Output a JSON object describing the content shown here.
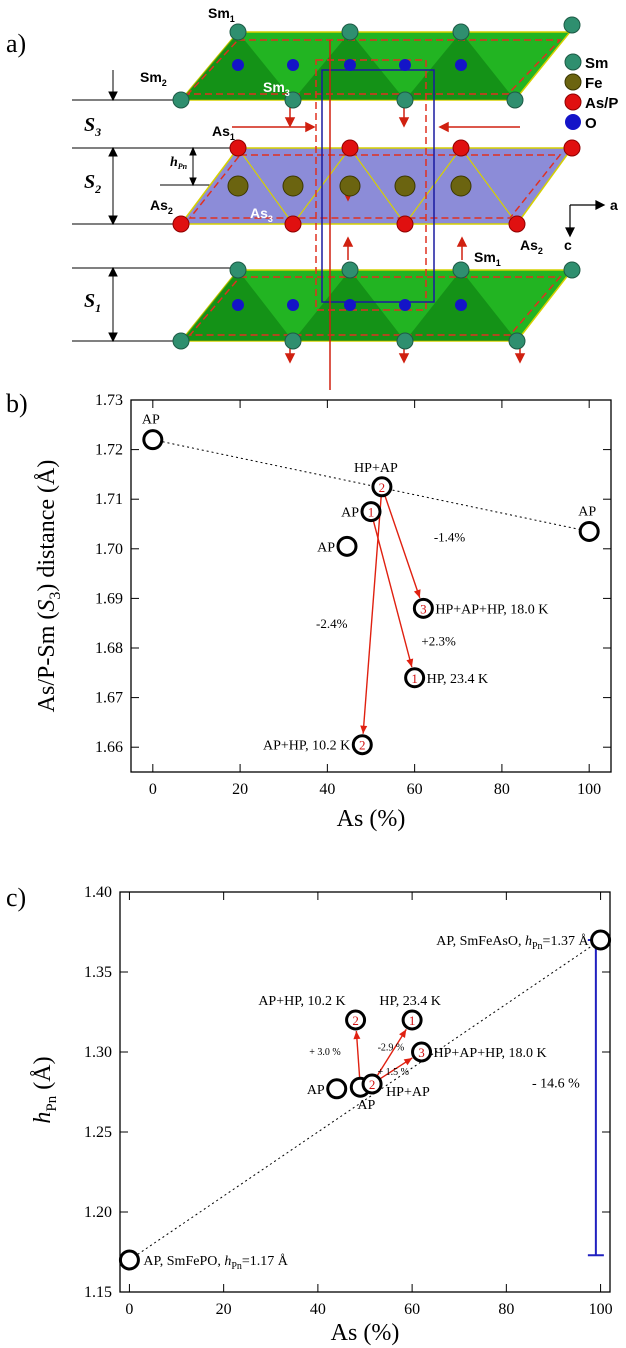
{
  "panels": {
    "a": {
      "label": "a)"
    },
    "b": {
      "label": "b)"
    },
    "c": {
      "label": "c)"
    }
  },
  "structure": {
    "legend": [
      {
        "label": "Sm",
        "color": "#2f8f6f"
      },
      {
        "label": "Fe",
        "color": "#6b6410"
      },
      {
        "label": "As/P",
        "color": "#e01010"
      },
      {
        "label": "O",
        "color": "#1010c0"
      }
    ],
    "atom_labels": {
      "sm1_top": "Sm",
      "sm1_top_sub": "1",
      "sm2": "Sm",
      "sm2_sub": "2",
      "sm3": "Sm",
      "sm3_sub": "3",
      "as1": "As",
      "as1_sub": "1",
      "as2_left": "As",
      "as2_left_sub": "2",
      "as3": "As",
      "as3_sub": "3",
      "as2_right": "As",
      "as2_right_sub": "2",
      "sm1_bottom": "Sm",
      "sm1_bottom_sub": "1"
    },
    "spacing_labels": {
      "s3": "S",
      "s3_sub": "3",
      "s2": "S",
      "s2_sub": "2",
      "s1": "S",
      "s1_sub": "1",
      "h": "h",
      "h_sub": "Pn"
    },
    "axes": {
      "a": "a",
      "c": "c"
    }
  },
  "chart_data": [
    {
      "type": "scatter",
      "panel": "b",
      "xlabel": "As (%)",
      "ylabel_parts": {
        "pre": "As/P-Sm (",
        "sym": "S",
        "sub": "3",
        "post": ") distance (Å)"
      },
      "xlim": [
        -5,
        105
      ],
      "ylim": [
        1.655,
        1.73
      ],
      "xticks": [
        0,
        20,
        40,
        60,
        80,
        100
      ],
      "yticks": [
        1.66,
        1.67,
        1.68,
        1.69,
        1.7,
        1.71,
        1.72,
        1.73
      ],
      "points": [
        {
          "x": 0,
          "y": 1.722,
          "num": "",
          "label": "AP"
        },
        {
          "x": 100,
          "y": 1.7035,
          "num": "",
          "label": "AP"
        },
        {
          "x": 44.5,
          "y": 1.7005,
          "num": "",
          "label": "AP"
        },
        {
          "x": 50,
          "y": 1.7075,
          "num": "1",
          "label": "AP"
        },
        {
          "x": 52.5,
          "y": 1.7125,
          "num": "2",
          "label": "HP+AP"
        },
        {
          "x": 48,
          "y": 1.6605,
          "num": "2",
          "label": "AP+HP, 10.2 K"
        },
        {
          "x": 60,
          "y": 1.674,
          "num": "1",
          "label": "HP, 23.4 K"
        },
        {
          "x": 62,
          "y": 1.688,
          "num": "3",
          "label": "HP+AP+HP, 18.0 K"
        }
      ],
      "trend": {
        "from": [
          0,
          1.722
        ],
        "to": [
          100,
          1.7035
        ]
      },
      "arrows": [
        {
          "from": [
            52.5,
            1.7125
          ],
          "to": [
            48,
            1.6605
          ]
        },
        {
          "from": [
            50,
            1.7075
          ],
          "to": [
            60,
            1.674
          ]
        },
        {
          "from": [
            52.5,
            1.7125
          ],
          "to": [
            62,
            1.688
          ]
        }
      ],
      "changes": [
        {
          "text": "-1.4%",
          "x": 68,
          "y": 1.7015
        },
        {
          "text": "+2.3%",
          "x": 65.5,
          "y": 1.6805
        },
        {
          "text": "-2.4%",
          "x": 41,
          "y": 1.684
        }
      ]
    },
    {
      "type": "scatter",
      "panel": "c",
      "xlabel": "As (%)",
      "ylabel_parts": {
        "sym": "h",
        "sub": "Pn",
        "post": " (Å)"
      },
      "xlim": [
        -2,
        102
      ],
      "ylim": [
        1.15,
        1.4
      ],
      "xticks": [
        0,
        20,
        40,
        60,
        80,
        100
      ],
      "yticks": [
        1.15,
        1.2,
        1.25,
        1.3,
        1.35,
        1.4
      ],
      "points": [
        {
          "x": 0,
          "y": 1.17,
          "num": "",
          "label": "AP, SmFePO, ",
          "hsym": "h",
          "hsub": "Pn",
          "hval": "=1.17 Å"
        },
        {
          "x": 100,
          "y": 1.37,
          "num": "",
          "label": "AP, SmFeAsO, ",
          "hsym": "h",
          "hsub": "Pn",
          "hval": "=1.37 Å"
        },
        {
          "x": 44,
          "y": 1.277,
          "num": "",
          "label": "AP"
        },
        {
          "x": 49,
          "y": 1.278,
          "num": "",
          "label": "AP"
        },
        {
          "x": 51.5,
          "y": 1.28,
          "num": "2",
          "label": "HP+AP"
        },
        {
          "x": 48,
          "y": 1.32,
          "num": "2",
          "label": "AP+HP, 10.2 K"
        },
        {
          "x": 60,
          "y": 1.32,
          "num": "1",
          "label": "HP, 23.4 K"
        },
        {
          "x": 62,
          "y": 1.3,
          "num": "3",
          "label": "HP+AP+HP, 18.0 K"
        }
      ],
      "trend": {
        "from": [
          0,
          1.17
        ],
        "to": [
          100,
          1.37
        ]
      },
      "arrows": [
        {
          "from": [
            49,
            1.278
          ],
          "to": [
            48,
            1.32
          ]
        },
        {
          "from": [
            51.5,
            1.28
          ],
          "to": [
            60,
            1.32
          ]
        },
        {
          "from": [
            51.5,
            1.28
          ],
          "to": [
            62,
            1.3
          ]
        }
      ],
      "changes": [
        {
          "text": "+ 3.0 %",
          "x": 41.5,
          "y": 1.298
        },
        {
          "text": "-2.9 %",
          "x": 55.5,
          "y": 1.301
        },
        {
          "text": "+ 1.5 %",
          "x": 56,
          "y": 1.2855
        }
      ],
      "range_bar": {
        "x": 99,
        "y_top": 1.37,
        "y_bottom": 1.173,
        "text": "- 14.6 %",
        "color": "#2020c0"
      }
    }
  ]
}
